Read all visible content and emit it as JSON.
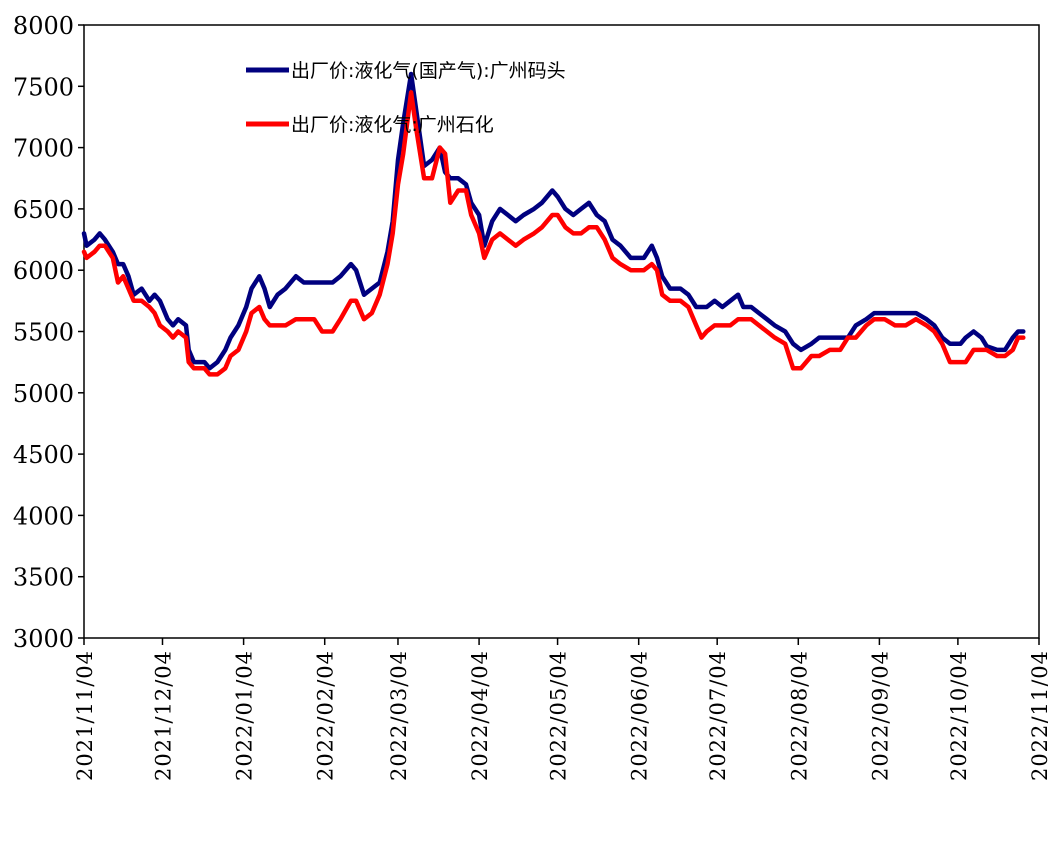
{
  "chart_data": {
    "type": "line",
    "title": "",
    "xlabel": "",
    "ylabel": "",
    "ylim": [
      3000,
      8000
    ],
    "yticks": [
      3000,
      3500,
      4000,
      4500,
      5000,
      5500,
      6000,
      6500,
      7000,
      7500,
      8000
    ],
    "x_range": [
      "2021/11/04",
      "2022/11/04"
    ],
    "xticks": [
      "2021/11/04",
      "2021/12/04",
      "2022/01/04",
      "2022/02/04",
      "2022/03/04",
      "2022/04/04",
      "2022/05/04",
      "2022/06/04",
      "2022/07/04",
      "2022/08/04",
      "2022/09/04",
      "2022/10/04",
      "2022/11/04"
    ],
    "grid": false,
    "legend_position": "top-left",
    "series": [
      {
        "name": "出厂价:液化气(国产气):广州码头",
        "color": "#00007f",
        "points": [
          [
            "2021/11/04",
            6300
          ],
          [
            "2021/11/05",
            6200
          ],
          [
            "2021/11/08",
            6250
          ],
          [
            "2021/11/10",
            6300
          ],
          [
            "2021/11/12",
            6250
          ],
          [
            "2021/11/15",
            6150
          ],
          [
            "2021/11/17",
            6050
          ],
          [
            "2021/11/19",
            6050
          ],
          [
            "2021/11/21",
            5950
          ],
          [
            "2021/11/23",
            5800
          ],
          [
            "2021/11/26",
            5850
          ],
          [
            "2021/11/29",
            5750
          ],
          [
            "2021/12/01",
            5800
          ],
          [
            "2021/12/03",
            5750
          ],
          [
            "2021/12/06",
            5600
          ],
          [
            "2021/12/08",
            5550
          ],
          [
            "2021/12/10",
            5600
          ],
          [
            "2021/12/13",
            5550
          ],
          [
            "2021/12/14",
            5350
          ],
          [
            "2021/12/16",
            5250
          ],
          [
            "2021/12/20",
            5250
          ],
          [
            "2021/12/22",
            5200
          ],
          [
            "2021/12/25",
            5250
          ],
          [
            "2021/12/28",
            5350
          ],
          [
            "2021/12/30",
            5450
          ],
          [
            "2022/01/02",
            5550
          ],
          [
            "2022/01/05",
            5700
          ],
          [
            "2022/01/07",
            5850
          ],
          [
            "2022/01/10",
            5950
          ],
          [
            "2022/01/12",
            5850
          ],
          [
            "2022/01/14",
            5700
          ],
          [
            "2022/01/17",
            5800
          ],
          [
            "2022/01/20",
            5850
          ],
          [
            "2022/01/24",
            5950
          ],
          [
            "2022/01/27",
            5900
          ],
          [
            "2022/01/31",
            5900
          ],
          [
            "2022/02/07",
            5900
          ],
          [
            "2022/02/10",
            5950
          ],
          [
            "2022/02/14",
            6050
          ],
          [
            "2022/02/16",
            6000
          ],
          [
            "2022/02/19",
            5800
          ],
          [
            "2022/02/22",
            5850
          ],
          [
            "2022/02/25",
            5900
          ],
          [
            "2022/02/28",
            6150
          ],
          [
            "2022/03/02",
            6400
          ],
          [
            "2022/03/04",
            6900
          ],
          [
            "2022/03/06",
            7200
          ],
          [
            "2022/03/09",
            7600
          ],
          [
            "2022/03/11",
            7300
          ],
          [
            "2022/03/14",
            6850
          ],
          [
            "2022/03/17",
            6900
          ],
          [
            "2022/03/20",
            7000
          ],
          [
            "2022/03/22",
            6800
          ],
          [
            "2022/03/24",
            6750
          ],
          [
            "2022/03/27",
            6750
          ],
          [
            "2022/03/30",
            6700
          ],
          [
            "2022/04/01",
            6550
          ],
          [
            "2022/04/04",
            6450
          ],
          [
            "2022/04/06",
            6200
          ],
          [
            "2022/04/09",
            6400
          ],
          [
            "2022/04/12",
            6500
          ],
          [
            "2022/04/15",
            6450
          ],
          [
            "2022/04/18",
            6400
          ],
          [
            "2022/04/21",
            6450
          ],
          [
            "2022/04/25",
            6500
          ],
          [
            "2022/04/28",
            6550
          ],
          [
            "2022/05/02",
            6650
          ],
          [
            "2022/05/04",
            6600
          ],
          [
            "2022/05/07",
            6500
          ],
          [
            "2022/05/10",
            6450
          ],
          [
            "2022/05/13",
            6500
          ],
          [
            "2022/05/16",
            6550
          ],
          [
            "2022/05/19",
            6450
          ],
          [
            "2022/05/22",
            6400
          ],
          [
            "2022/05/25",
            6250
          ],
          [
            "2022/05/28",
            6200
          ],
          [
            "2022/06/01",
            6100
          ],
          [
            "2022/06/06",
            6100
          ],
          [
            "2022/06/09",
            6200
          ],
          [
            "2022/06/11",
            6100
          ],
          [
            "2022/06/13",
            5950
          ],
          [
            "2022/06/16",
            5850
          ],
          [
            "2022/06/20",
            5850
          ],
          [
            "2022/06/23",
            5800
          ],
          [
            "2022/06/26",
            5700
          ],
          [
            "2022/06/30",
            5700
          ],
          [
            "2022/07/03",
            5750
          ],
          [
            "2022/07/06",
            5700
          ],
          [
            "2022/07/09",
            5750
          ],
          [
            "2022/07/12",
            5800
          ],
          [
            "2022/07/14",
            5700
          ],
          [
            "2022/07/17",
            5700
          ],
          [
            "2022/07/20",
            5650
          ],
          [
            "2022/07/23",
            5600
          ],
          [
            "2022/07/26",
            5550
          ],
          [
            "2022/07/30",
            5500
          ],
          [
            "2022/08/02",
            5400
          ],
          [
            "2022/08/05",
            5350
          ],
          [
            "2022/08/09",
            5400
          ],
          [
            "2022/08/12",
            5450
          ],
          [
            "2022/08/16",
            5450
          ],
          [
            "2022/08/20",
            5450
          ],
          [
            "2022/08/23",
            5450
          ],
          [
            "2022/08/26",
            5550
          ],
          [
            "2022/08/30",
            5600
          ],
          [
            "2022/09/02",
            5650
          ],
          [
            "2022/09/06",
            5650
          ],
          [
            "2022/09/10",
            5650
          ],
          [
            "2022/09/14",
            5650
          ],
          [
            "2022/09/18",
            5650
          ],
          [
            "2022/09/22",
            5600
          ],
          [
            "2022/09/25",
            5550
          ],
          [
            "2022/09/28",
            5450
          ],
          [
            "2022/10/01",
            5400
          ],
          [
            "2022/10/05",
            5400
          ],
          [
            "2022/10/07",
            5450
          ],
          [
            "2022/10/10",
            5500
          ],
          [
            "2022/10/13",
            5450
          ],
          [
            "2022/10/15",
            5380
          ],
          [
            "2022/10/19",
            5350
          ],
          [
            "2022/10/22",
            5350
          ],
          [
            "2022/10/25",
            5450
          ],
          [
            "2022/10/27",
            5500
          ],
          [
            "2022/10/29",
            5500
          ]
        ]
      },
      {
        "name": "出厂价:液化气:广州石化",
        "color": "#ff0000",
        "points": [
          [
            "2021/11/04",
            6150
          ],
          [
            "2021/11/05",
            6100
          ],
          [
            "2021/11/08",
            6150
          ],
          [
            "2021/11/10",
            6200
          ],
          [
            "2021/11/12",
            6200
          ],
          [
            "2021/11/15",
            6100
          ],
          [
            "2021/11/17",
            5900
          ],
          [
            "2021/11/19",
            5950
          ],
          [
            "2021/11/21",
            5850
          ],
          [
            "2021/11/23",
            5750
          ],
          [
            "2021/11/26",
            5750
          ],
          [
            "2021/11/29",
            5700
          ],
          [
            "2021/12/01",
            5650
          ],
          [
            "2021/12/03",
            5550
          ],
          [
            "2021/12/06",
            5500
          ],
          [
            "2021/12/08",
            5450
          ],
          [
            "2021/12/10",
            5500
          ],
          [
            "2021/12/13",
            5450
          ],
          [
            "2021/12/14",
            5250
          ],
          [
            "2021/12/16",
            5200
          ],
          [
            "2021/12/20",
            5200
          ],
          [
            "2021/12/22",
            5150
          ],
          [
            "2021/12/25",
            5150
          ],
          [
            "2021/12/28",
            5200
          ],
          [
            "2021/12/30",
            5300
          ],
          [
            "2022/01/02",
            5350
          ],
          [
            "2022/01/05",
            5500
          ],
          [
            "2022/01/07",
            5650
          ],
          [
            "2022/01/10",
            5700
          ],
          [
            "2022/01/12",
            5600
          ],
          [
            "2022/01/14",
            5550
          ],
          [
            "2022/01/17",
            5550
          ],
          [
            "2022/01/20",
            5550
          ],
          [
            "2022/01/24",
            5600
          ],
          [
            "2022/01/27",
            5600
          ],
          [
            "2022/01/31",
            5600
          ],
          [
            "2022/02/03",
            5500
          ],
          [
            "2022/02/07",
            5500
          ],
          [
            "2022/02/10",
            5600
          ],
          [
            "2022/02/14",
            5750
          ],
          [
            "2022/02/16",
            5750
          ],
          [
            "2022/02/19",
            5600
          ],
          [
            "2022/02/22",
            5650
          ],
          [
            "2022/02/25",
            5800
          ],
          [
            "2022/02/28",
            6050
          ],
          [
            "2022/03/02",
            6300
          ],
          [
            "2022/03/04",
            6700
          ],
          [
            "2022/03/06",
            6950
          ],
          [
            "2022/03/09",
            7450
          ],
          [
            "2022/03/11",
            7150
          ],
          [
            "2022/03/14",
            6750
          ],
          [
            "2022/03/17",
            6750
          ],
          [
            "2022/03/20",
            7000
          ],
          [
            "2022/03/22",
            6950
          ],
          [
            "2022/03/24",
            6550
          ],
          [
            "2022/03/27",
            6650
          ],
          [
            "2022/03/30",
            6650
          ],
          [
            "2022/04/01",
            6450
          ],
          [
            "2022/04/04",
            6300
          ],
          [
            "2022/04/06",
            6100
          ],
          [
            "2022/04/09",
            6250
          ],
          [
            "2022/04/12",
            6300
          ],
          [
            "2022/04/15",
            6250
          ],
          [
            "2022/04/18",
            6200
          ],
          [
            "2022/04/21",
            6250
          ],
          [
            "2022/04/25",
            6300
          ],
          [
            "2022/04/28",
            6350
          ],
          [
            "2022/05/02",
            6450
          ],
          [
            "2022/05/04",
            6450
          ],
          [
            "2022/05/07",
            6350
          ],
          [
            "2022/05/10",
            6300
          ],
          [
            "2022/05/13",
            6300
          ],
          [
            "2022/05/16",
            6350
          ],
          [
            "2022/05/19",
            6350
          ],
          [
            "2022/05/22",
            6250
          ],
          [
            "2022/05/25",
            6100
          ],
          [
            "2022/05/28",
            6050
          ],
          [
            "2022/06/01",
            6000
          ],
          [
            "2022/06/06",
            6000
          ],
          [
            "2022/06/09",
            6050
          ],
          [
            "2022/06/11",
            6000
          ],
          [
            "2022/06/13",
            5800
          ],
          [
            "2022/06/16",
            5750
          ],
          [
            "2022/06/20",
            5750
          ],
          [
            "2022/06/23",
            5700
          ],
          [
            "2022/06/26",
            5550
          ],
          [
            "2022/06/28",
            5450
          ],
          [
            "2022/06/30",
            5500
          ],
          [
            "2022/07/03",
            5550
          ],
          [
            "2022/07/06",
            5550
          ],
          [
            "2022/07/09",
            5550
          ],
          [
            "2022/07/12",
            5600
          ],
          [
            "2022/07/14",
            5600
          ],
          [
            "2022/07/17",
            5600
          ],
          [
            "2022/07/20",
            5550
          ],
          [
            "2022/07/23",
            5500
          ],
          [
            "2022/07/26",
            5450
          ],
          [
            "2022/07/30",
            5400
          ],
          [
            "2022/08/02",
            5200
          ],
          [
            "2022/08/05",
            5200
          ],
          [
            "2022/08/09",
            5300
          ],
          [
            "2022/08/12",
            5300
          ],
          [
            "2022/08/16",
            5350
          ],
          [
            "2022/08/20",
            5350
          ],
          [
            "2022/08/23",
            5450
          ],
          [
            "2022/08/26",
            5450
          ],
          [
            "2022/08/30",
            5550
          ],
          [
            "2022/09/02",
            5600
          ],
          [
            "2022/09/06",
            5600
          ],
          [
            "2022/09/10",
            5550
          ],
          [
            "2022/09/14",
            5550
          ],
          [
            "2022/09/18",
            5600
          ],
          [
            "2022/09/22",
            5550
          ],
          [
            "2022/09/25",
            5500
          ],
          [
            "2022/09/28",
            5400
          ],
          [
            "2022/10/01",
            5250
          ],
          [
            "2022/10/05",
            5250
          ],
          [
            "2022/10/07",
            5250
          ],
          [
            "2022/10/10",
            5350
          ],
          [
            "2022/10/13",
            5350
          ],
          [
            "2022/10/15",
            5350
          ],
          [
            "2022/10/19",
            5300
          ],
          [
            "2022/10/22",
            5300
          ],
          [
            "2022/10/25",
            5350
          ],
          [
            "2022/10/27",
            5450
          ],
          [
            "2022/10/29",
            5450
          ]
        ]
      }
    ]
  }
}
